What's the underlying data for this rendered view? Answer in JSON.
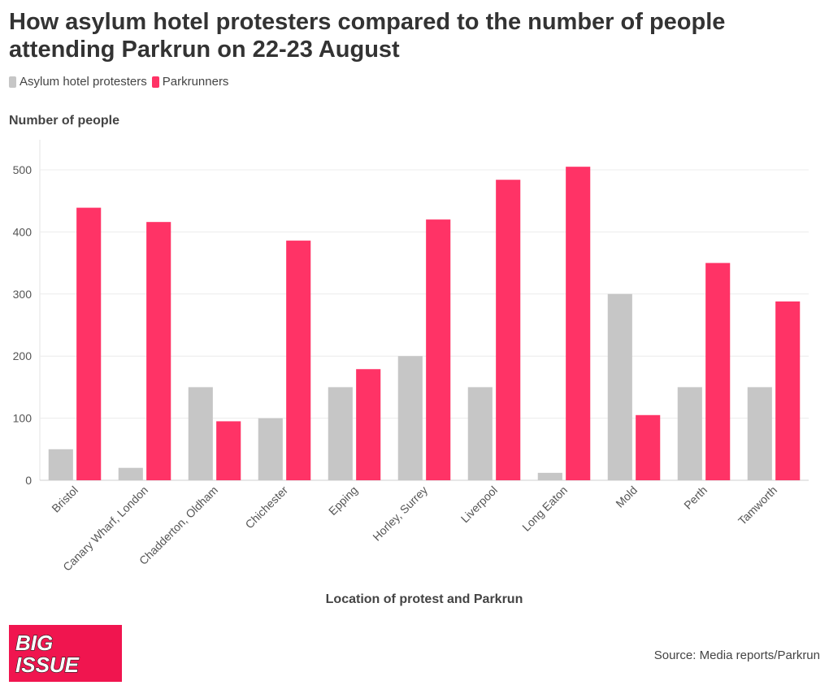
{
  "chart_data": {
    "type": "bar",
    "title": "How asylum hotel protesters compared to the number of people attending Parkrun on 22-23 August",
    "xlabel": "Location of protest and Parkrun",
    "ylabel": "Number of people",
    "ylim": [
      0,
      550
    ],
    "yticks": [
      0,
      100,
      200,
      300,
      400,
      500
    ],
    "grid": true,
    "legend_position": "top-left",
    "categories": [
      "Bristol",
      "Canary Wharf, London",
      "Chadderton, Oldham",
      "Chichester",
      "Epping",
      "Horley, Surrey",
      "Liverpool",
      "Long Eaton",
      "Mold",
      "Perth",
      "Tamworth"
    ],
    "series": [
      {
        "name": "Asylum hotel protesters",
        "color": "#c6c6c6",
        "values": [
          50,
          20,
          150,
          100,
          150,
          200,
          150,
          12,
          300,
          150,
          150
        ]
      },
      {
        "name": "Parkrunners",
        "color": "#ff3366",
        "values": [
          439,
          416,
          95,
          386,
          179,
          420,
          484,
          505,
          105,
          350,
          288
        ]
      }
    ]
  },
  "logo": {
    "line1": "BIG",
    "line2": "ISSUE",
    "color": "#f0154f"
  },
  "source": "Source: Media reports/Parkrun"
}
